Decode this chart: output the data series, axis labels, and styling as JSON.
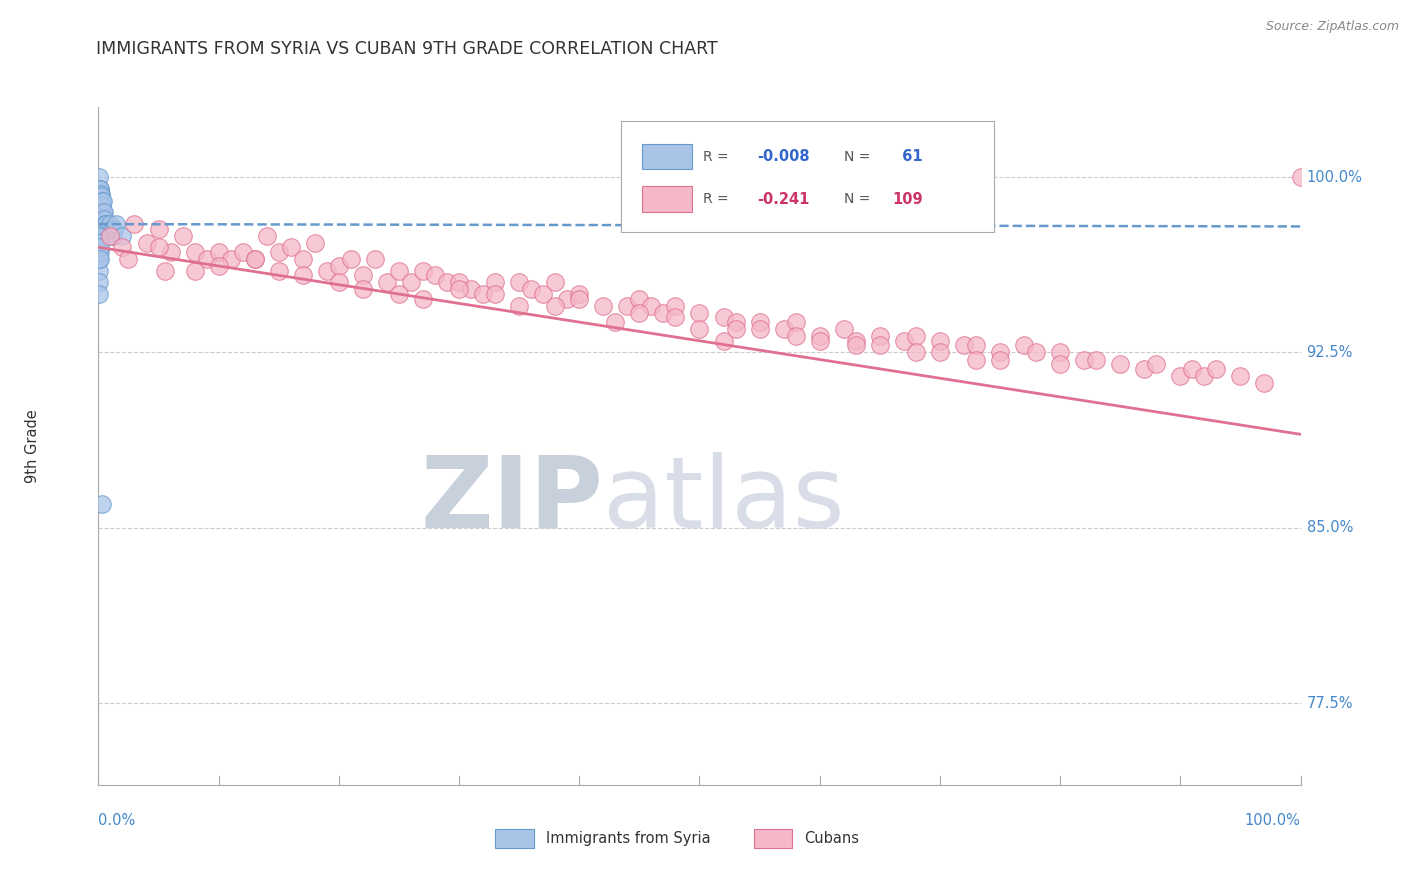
{
  "title": "IMMIGRANTS FROM SYRIA VS CUBAN 9TH GRADE CORRELATION CHART",
  "source_text": "Source: ZipAtlas.com",
  "ylabel": "9th Grade",
  "xlim": [
    0.0,
    100.0
  ],
  "ylim": [
    74.0,
    103.0
  ],
  "yticks_right": [
    77.5,
    85.0,
    92.5,
    100.0
  ],
  "ytick_labels_right": [
    "77.5%",
    "85.0%",
    "92.5%",
    "100.0%"
  ],
  "series1_name": "Immigrants from Syria",
  "series1_color": "#aac4e8",
  "series1_edge_color": "#6699cc",
  "series1_R": -0.008,
  "series1_N": 61,
  "series2_name": "Cubans",
  "series2_color": "#f4b8c8",
  "series2_edge_color": "#e07090",
  "series2_R": -0.241,
  "series2_N": 109,
  "trend1_color": "#6699cc",
  "trend2_color": "#e07090",
  "legend_R1_color": "#3366cc",
  "legend_R2_color": "#cc3366",
  "legend_N1_color": "#3366cc",
  "legend_N2_color": "#cc3366",
  "background_color": "#ffffff",
  "grid_color": "#cccccc",
  "syria_x": [
    0.05,
    0.05,
    0.05,
    0.05,
    0.05,
    0.08,
    0.08,
    0.08,
    0.1,
    0.1,
    0.1,
    0.12,
    0.12,
    0.15,
    0.15,
    0.15,
    0.15,
    0.18,
    0.18,
    0.2,
    0.2,
    0.2,
    0.22,
    0.22,
    0.25,
    0.25,
    0.28,
    0.28,
    0.3,
    0.3,
    0.35,
    0.35,
    0.38,
    0.4,
    0.4,
    0.45,
    0.5,
    0.55,
    0.6,
    0.65,
    0.7,
    0.8,
    0.9,
    1.0,
    1.1,
    1.2,
    1.3,
    1.5,
    2.0,
    0.05,
    0.05,
    0.05,
    0.05,
    0.05,
    0.07,
    0.07,
    0.09,
    0.09,
    0.11,
    0.13,
    0.3
  ],
  "syria_y": [
    100.0,
    99.5,
    99.2,
    98.8,
    98.5,
    99.3,
    99.0,
    98.7,
    99.5,
    99.0,
    98.5,
    99.2,
    98.8,
    99.5,
    99.2,
    99.0,
    98.5,
    98.8,
    97.5,
    99.3,
    99.0,
    98.5,
    98.8,
    97.8,
    99.2,
    98.5,
    99.0,
    98.2,
    98.8,
    97.5,
    98.5,
    98.0,
    98.5,
    99.0,
    98.0,
    98.5,
    98.2,
    98.0,
    97.8,
    98.0,
    97.5,
    97.8,
    97.5,
    98.0,
    97.8,
    97.5,
    97.8,
    98.0,
    97.5,
    97.0,
    96.5,
    96.0,
    95.5,
    95.0,
    97.5,
    96.5,
    97.2,
    96.8,
    97.0,
    96.5,
    86.0
  ],
  "cubans_x": [
    1.0,
    2.0,
    3.0,
    5.0,
    5.5,
    7.0,
    8.0,
    9.0,
    10.0,
    11.0,
    12.0,
    13.0,
    14.0,
    15.0,
    16.0,
    17.0,
    18.0,
    19.0,
    20.0,
    21.0,
    22.0,
    23.0,
    24.0,
    25.0,
    26.0,
    27.0,
    28.0,
    29.0,
    30.0,
    31.0,
    32.0,
    33.0,
    35.0,
    36.0,
    37.0,
    38.0,
    39.0,
    40.0,
    42.0,
    44.0,
    45.0,
    46.0,
    47.0,
    48.0,
    50.0,
    52.0,
    53.0,
    55.0,
    57.0,
    58.0,
    60.0,
    62.0,
    63.0,
    65.0,
    67.0,
    68.0,
    70.0,
    72.0,
    73.0,
    75.0,
    77.0,
    78.0,
    80.0,
    82.0,
    83.0,
    85.0,
    87.0,
    88.0,
    90.0,
    91.0,
    92.0,
    93.0,
    95.0,
    97.0,
    4.0,
    6.0,
    15.0,
    20.0,
    25.0,
    30.0,
    35.0,
    40.0,
    45.0,
    50.0,
    52.0,
    55.0,
    60.0,
    65.0,
    70.0,
    75.0,
    80.0,
    2.5,
    5.0,
    8.0,
    10.0,
    13.0,
    17.0,
    22.0,
    27.0,
    33.0,
    38.0,
    43.0,
    48.0,
    53.0,
    58.0,
    63.0,
    68.0,
    73.0,
    100.0
  ],
  "cubans_y": [
    97.5,
    97.0,
    98.0,
    97.8,
    96.0,
    97.5,
    96.8,
    96.5,
    96.8,
    96.5,
    96.8,
    96.5,
    97.5,
    96.8,
    97.0,
    96.5,
    97.2,
    96.0,
    96.2,
    96.5,
    95.8,
    96.5,
    95.5,
    96.0,
    95.5,
    96.0,
    95.8,
    95.5,
    95.5,
    95.2,
    95.0,
    95.5,
    95.5,
    95.2,
    95.0,
    95.5,
    94.8,
    95.0,
    94.5,
    94.5,
    94.8,
    94.5,
    94.2,
    94.5,
    94.2,
    94.0,
    93.8,
    93.8,
    93.5,
    93.8,
    93.2,
    93.5,
    93.0,
    93.2,
    93.0,
    93.2,
    93.0,
    92.8,
    92.8,
    92.5,
    92.8,
    92.5,
    92.5,
    92.2,
    92.2,
    92.0,
    91.8,
    92.0,
    91.5,
    91.8,
    91.5,
    91.8,
    91.5,
    91.2,
    97.2,
    96.8,
    96.0,
    95.5,
    95.0,
    95.2,
    94.5,
    94.8,
    94.2,
    93.5,
    93.0,
    93.5,
    93.0,
    92.8,
    92.5,
    92.2,
    92.0,
    96.5,
    97.0,
    96.0,
    96.2,
    96.5,
    95.8,
    95.2,
    94.8,
    95.0,
    94.5,
    93.8,
    94.0,
    93.5,
    93.2,
    92.8,
    92.5,
    92.2,
    100.0
  ]
}
